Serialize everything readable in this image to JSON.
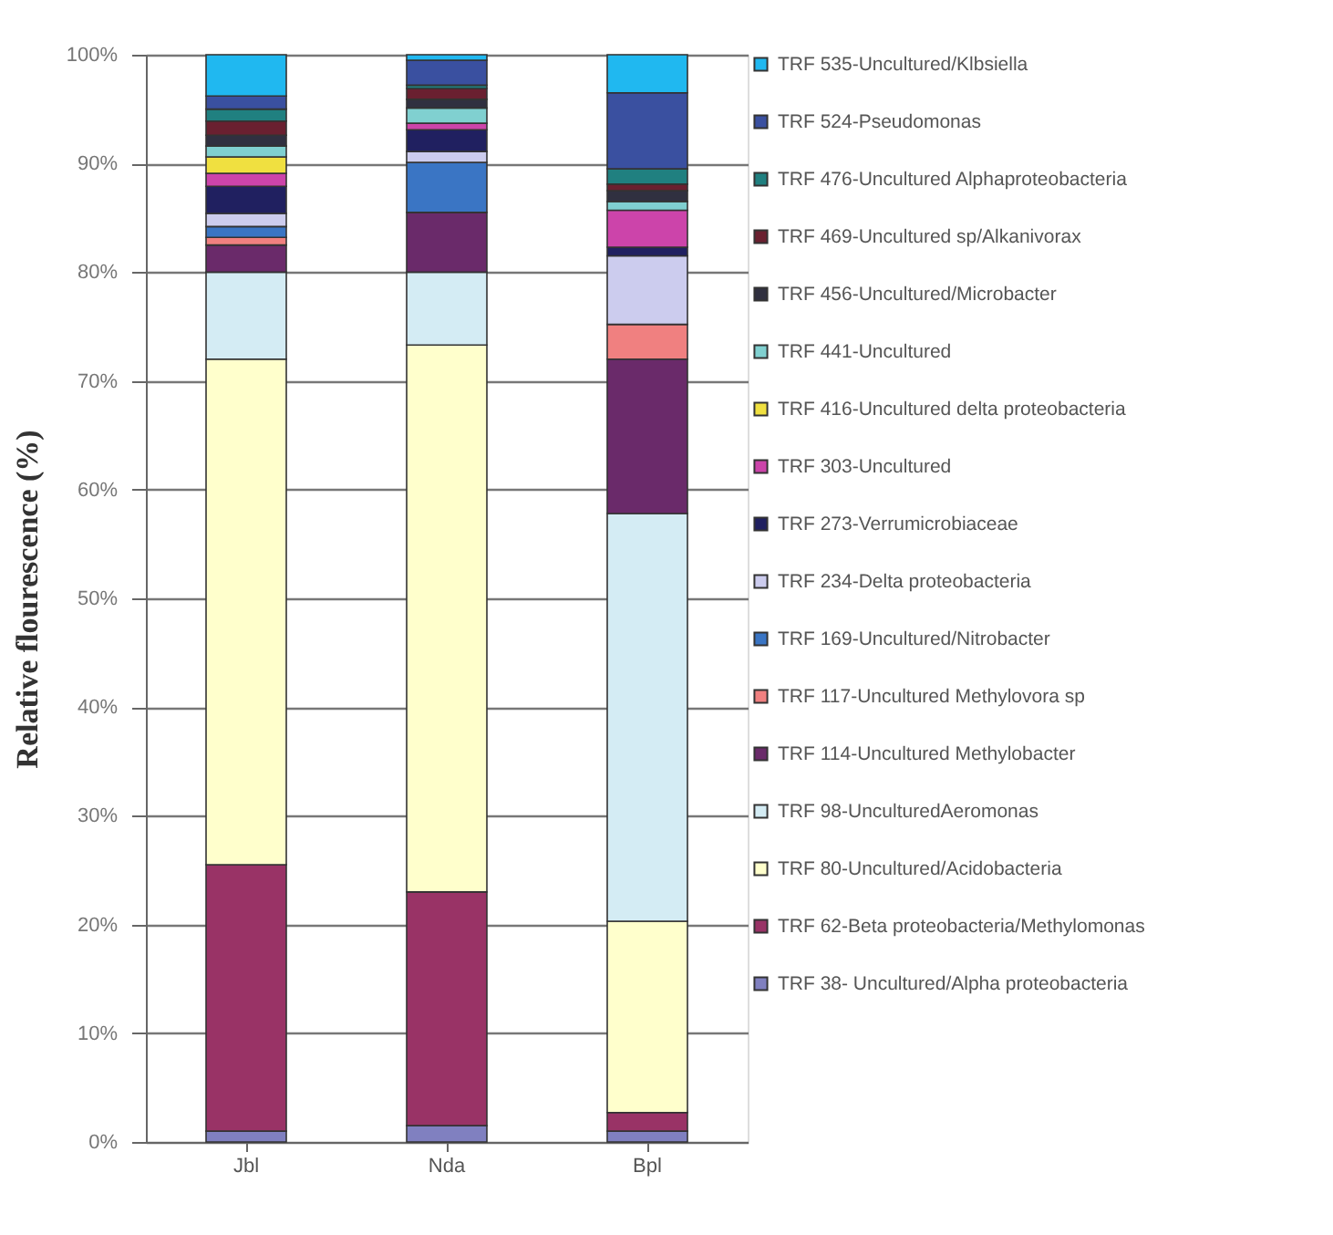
{
  "chart_data": {
    "type": "bar",
    "stacked": true,
    "ylabel": "Relative flourescence (%)",
    "categories": [
      "Jbl",
      "Nda",
      "Bpl"
    ],
    "ylim": [
      0,
      100
    ],
    "yticks": [
      {
        "value": 0,
        "label": "0%"
      },
      {
        "value": 10,
        "label": "10%"
      },
      {
        "value": 20,
        "label": "20%"
      },
      {
        "value": 30,
        "label": "30%"
      },
      {
        "value": 40,
        "label": "40%"
      },
      {
        "value": 50,
        "label": "50%"
      },
      {
        "value": 60,
        "label": "60%"
      },
      {
        "value": 70,
        "label": "70%"
      },
      {
        "value": 80,
        "label": "80%"
      },
      {
        "value": 90,
        "label": "90%"
      },
      {
        "value": 100,
        "label": "100%"
      }
    ],
    "grid": "y",
    "legend": "right",
    "series": [
      {
        "name": "TRF 38- Uncultured/Alpha proteobacteria",
        "color": "#8080c0",
        "values": [
          1,
          1.5,
          1
        ]
      },
      {
        "name": "TRF 62-Beta proteobacteria/Methylomonas",
        "color": "#993366",
        "values": [
          24.5,
          21.5,
          1.7
        ]
      },
      {
        "name": "TRF 80-Uncultured/Acidobacteria",
        "color": "#ffffcc",
        "values": [
          46.5,
          50.3,
          17.6
        ]
      },
      {
        "name": "TRF 98-UnculturedAeromonas",
        "color": "#d4ecf4",
        "values": [
          8,
          6.7,
          37.5
        ]
      },
      {
        "name": "TRF 114-Uncultured Methylobacter",
        "color": "#6a2a6a",
        "values": [
          2.5,
          5.5,
          14.2
        ]
      },
      {
        "name": "TRF 117-Uncultured Methylovora sp",
        "color": "#f08080",
        "values": [
          0.7,
          0,
          3.2
        ]
      },
      {
        "name": "TRF 169-Uncultured/Nitrobacter",
        "color": "#3a75c4",
        "values": [
          1,
          4.6,
          0
        ]
      },
      {
        "name": "TRF 234-Delta proteobacteria",
        "color": "#ccccee",
        "values": [
          1.2,
          1,
          6.3
        ]
      },
      {
        "name": "TRF 273-Verrumicrobiaceae",
        "color": "#202060",
        "values": [
          2.5,
          2,
          0.8
        ]
      },
      {
        "name": "TRF 303-Uncultured",
        "color": "#cc44aa",
        "values": [
          1.2,
          0.6,
          3.4
        ]
      },
      {
        "name": "TRF 416-Uncultured delta proteobacteria",
        "color": "#f0e040",
        "values": [
          1.5,
          0,
          0
        ]
      },
      {
        "name": "TRF 441-Uncultured",
        "color": "#80d0d0",
        "values": [
          1,
          1.4,
          0.8
        ]
      },
      {
        "name": "TRF 456-Uncultured/Microbacter",
        "color": "#303040",
        "values": [
          1,
          0.8,
          1
        ]
      },
      {
        "name": "TRF 469-Uncultured sp/Alkanivorax",
        "color": "#6a2030",
        "values": [
          1.3,
          1,
          0.6
        ]
      },
      {
        "name": "TRF 476-Uncultured Alphaproteobacteria",
        "color": "#208080",
        "values": [
          1.1,
          0.3,
          1.4
        ]
      },
      {
        "name": "TRF 524-Pseudomonas",
        "color": "#3a50a0",
        "values": [
          1.2,
          2.3,
          7
        ]
      },
      {
        "name": "TRF 535-Uncultured/Klbsiella",
        "color": "#20b8f0",
        "values": [
          3.8,
          0.5,
          3.5
        ]
      }
    ]
  }
}
